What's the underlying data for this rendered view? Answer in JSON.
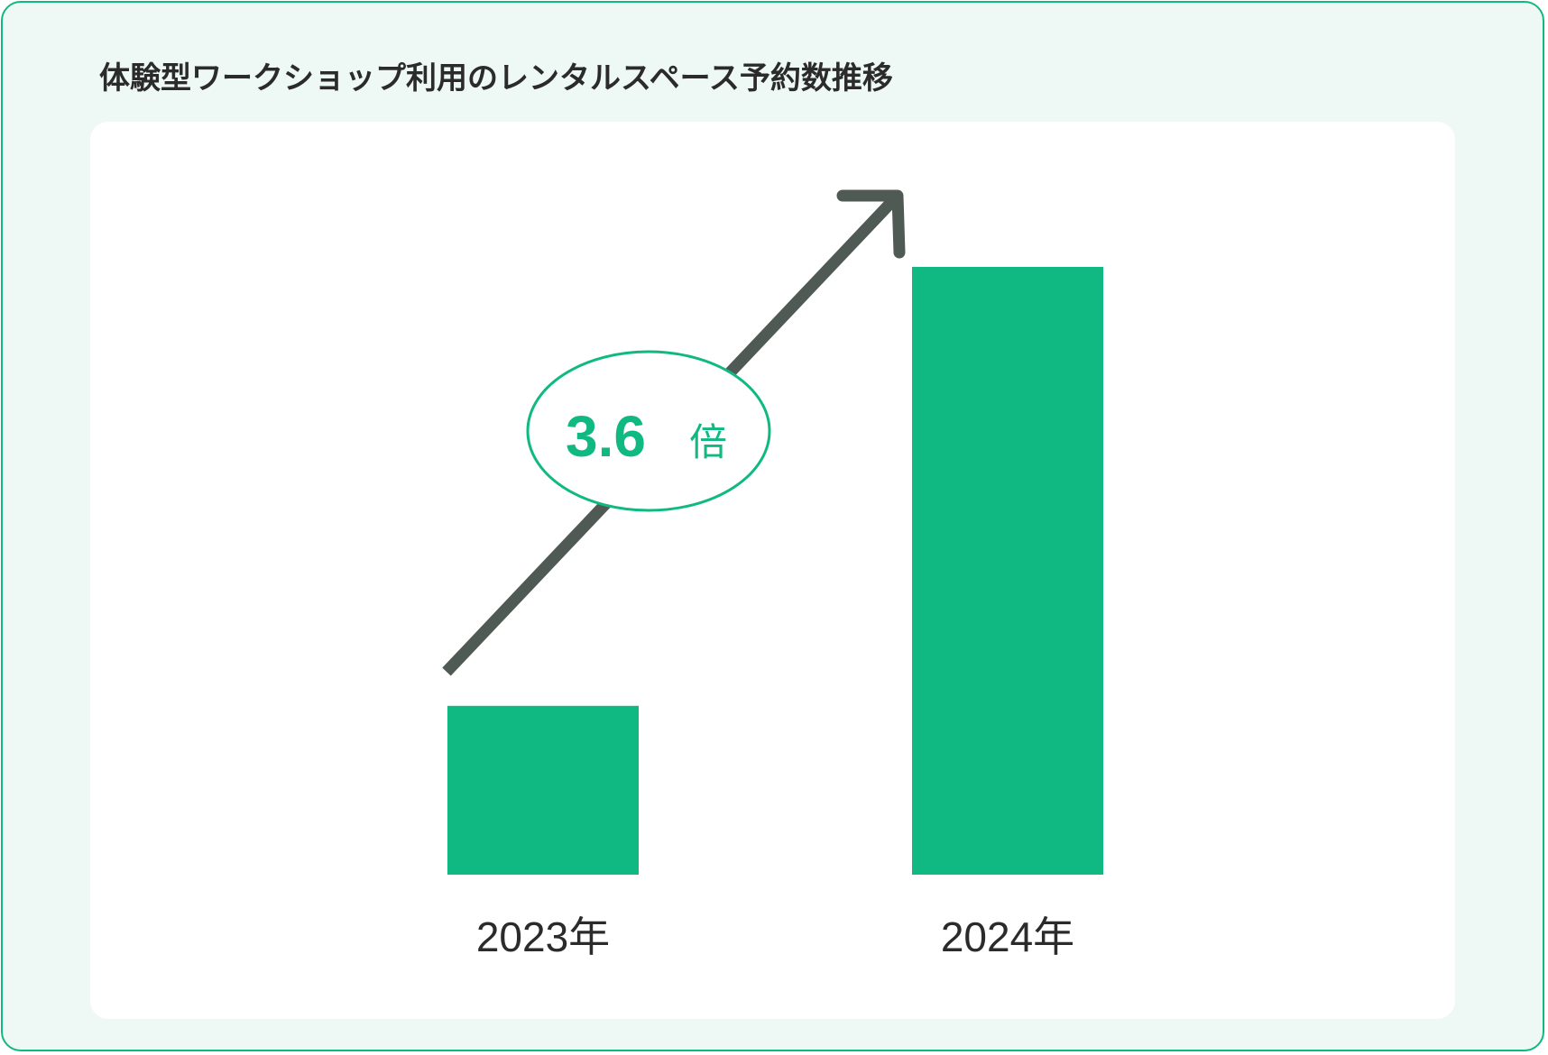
{
  "chart_data": {
    "type": "bar",
    "title": "体験型ワークショップ利用のレンタルスペース予約数推移",
    "categories": [
      "2023年",
      "2024年"
    ],
    "values": [
      1,
      3.6
    ],
    "ylim": [
      0,
      3.6
    ],
    "grid": false,
    "annotation": {
      "value": "3.6",
      "unit": "倍"
    }
  },
  "colors": {
    "bar": "#10b981",
    "arrow": "#505a55",
    "border": "#10b981",
    "background": "#eef8f4"
  }
}
